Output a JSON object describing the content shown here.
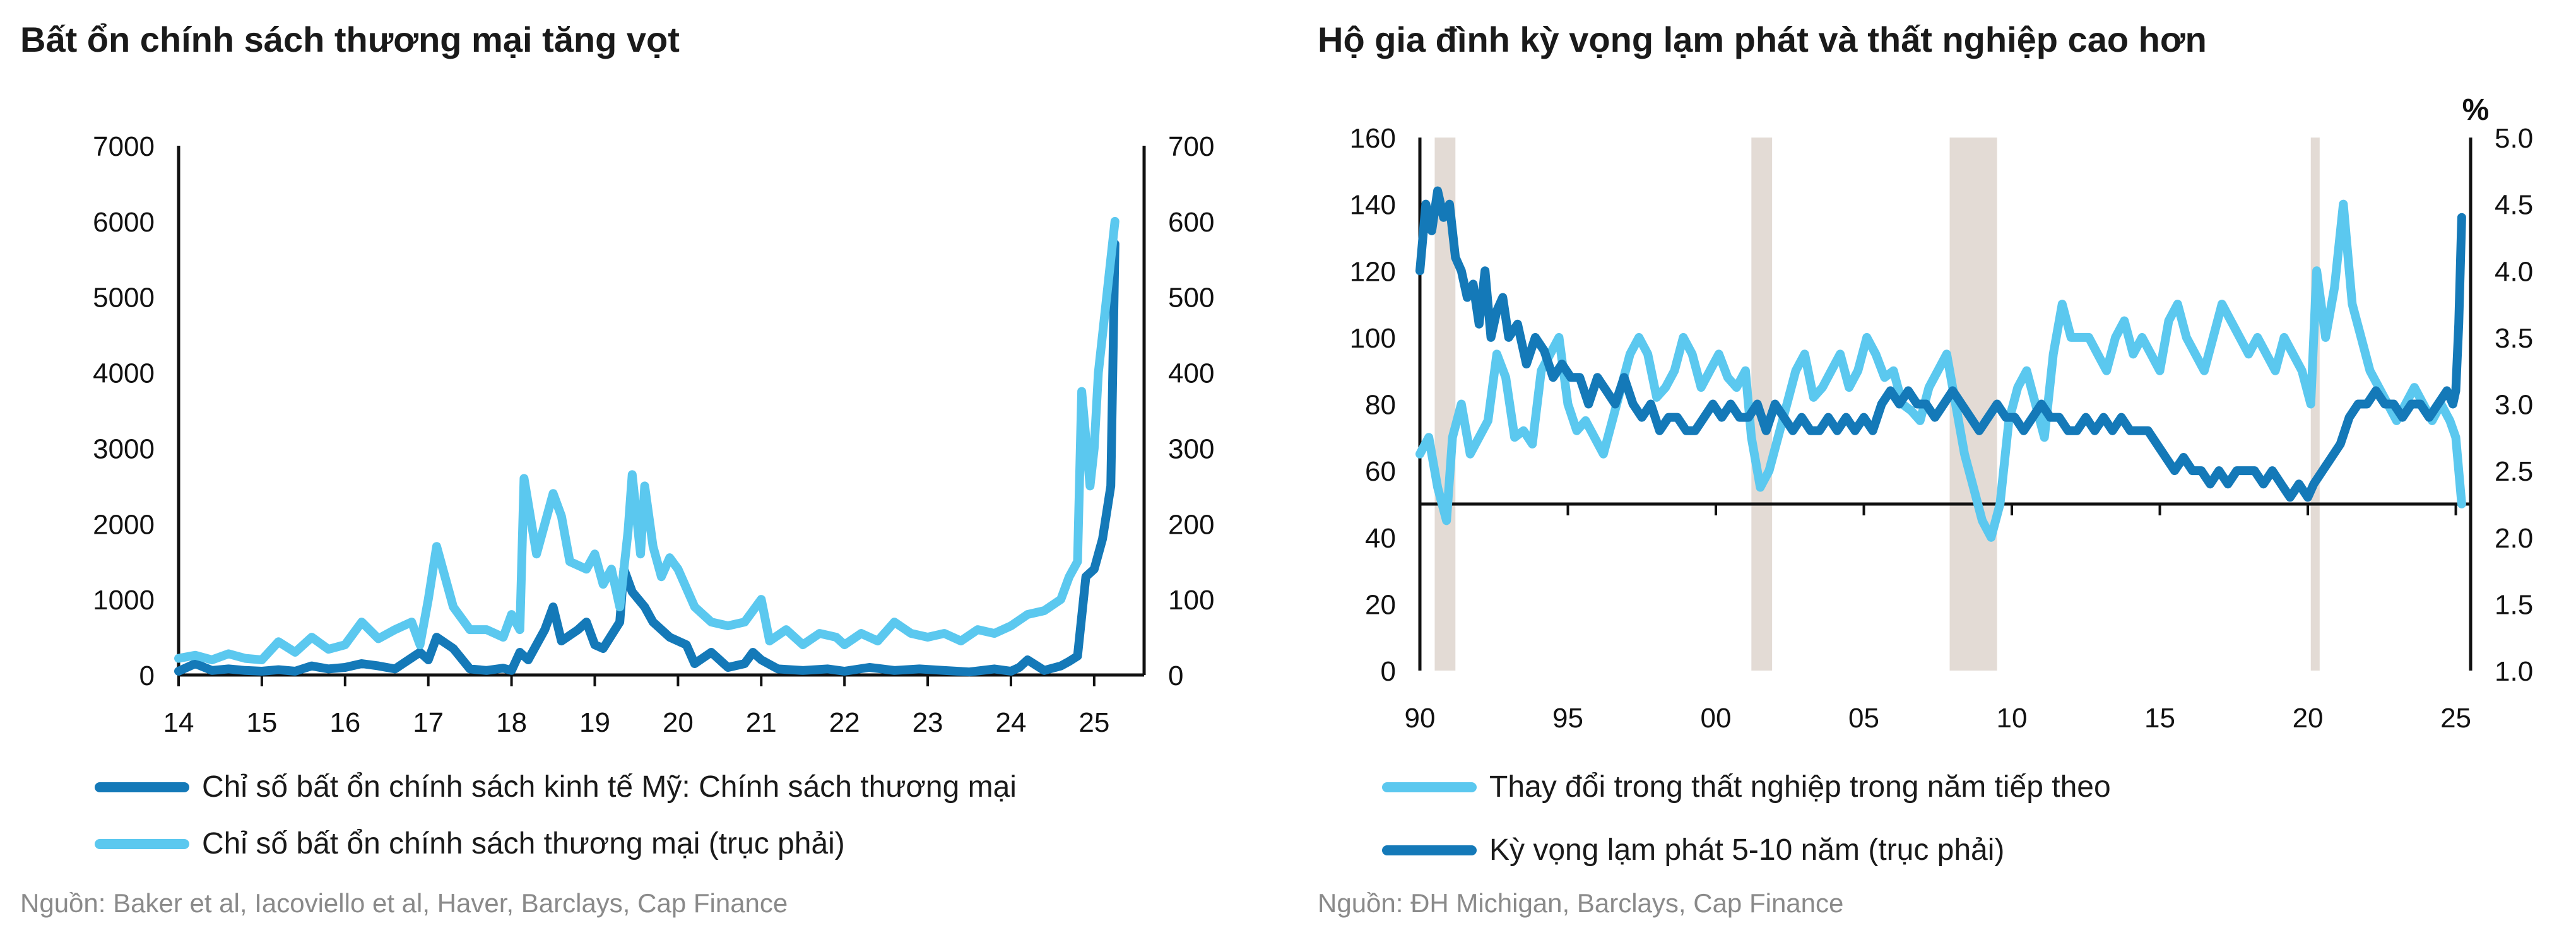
{
  "chart_data": [
    {
      "type": "line",
      "title": "Bất ổn chính sách thương mại tăng vọt",
      "xlabel": "",
      "ylabel": "",
      "x_ticks": [
        "14",
        "15",
        "16",
        "17",
        "18",
        "19",
        "20",
        "21",
        "22",
        "23",
        "24",
        "25"
      ],
      "xlim": [
        2014.0,
        2025.6
      ],
      "ylim_left": [
        0,
        7000
      ],
      "ylim_right": [
        0,
        700
      ],
      "yticks_left": [
        "7000",
        "6000",
        "5000",
        "4000",
        "3000",
        "2000",
        "1000",
        "0"
      ],
      "yticks_right": [
        "700",
        "600",
        "500",
        "400",
        "300",
        "200",
        "100",
        "0"
      ],
      "grid": false,
      "legend_position": "bottom",
      "series": [
        {
          "name": "Chỉ số bất ổn chính sách kinh tế Mỹ: Chính sách thương mại",
          "axis": "left",
          "color": "#1479b8",
          "x": [
            2014.0,
            2014.2,
            2014.4,
            2014.6,
            2014.8,
            2015.0,
            2015.2,
            2015.4,
            2015.6,
            2015.8,
            2016.0,
            2016.2,
            2016.4,
            2016.6,
            2016.9,
            2017.0,
            2017.1,
            2017.3,
            2017.5,
            2017.7,
            2017.9,
            2018.0,
            2018.1,
            2018.2,
            2018.4,
            2018.5,
            2018.6,
            2018.8,
            2018.9,
            2019.0,
            2019.1,
            2019.3,
            2019.35,
            2019.45,
            2019.6,
            2019.7,
            2019.9,
            2020.1,
            2020.2,
            2020.4,
            2020.6,
            2020.8,
            2020.9,
            2021.0,
            2021.2,
            2021.5,
            2021.8,
            2022.0,
            2022.3,
            2022.6,
            2022.9,
            2023.2,
            2023.5,
            2023.8,
            2024.0,
            2024.1,
            2024.2,
            2024.4,
            2024.6,
            2024.7,
            2024.8,
            2024.9,
            2025.0,
            2025.1,
            2025.2,
            2025.25
          ],
          "values": [
            50,
            150,
            60,
            80,
            60,
            50,
            70,
            50,
            120,
            80,
            100,
            150,
            120,
            80,
            300,
            200,
            500,
            350,
            80,
            60,
            90,
            60,
            300,
            200,
            600,
            900,
            450,
            600,
            700,
            400,
            350,
            700,
            1400,
            1100,
            900,
            700,
            500,
            400,
            150,
            300,
            100,
            150,
            300,
            200,
            80,
            60,
            80,
            50,
            100,
            60,
            80,
            60,
            40,
            80,
            50,
            100,
            200,
            60,
            120,
            180,
            250,
            1300,
            1400,
            1800,
            2500,
            5700
          ]
        },
        {
          "name": "Chỉ số bất ổn chính sách thương mại (trục phải)",
          "axis": "right",
          "color": "#5bc8ef",
          "x": [
            2014.0,
            2014.2,
            2014.4,
            2014.6,
            2014.8,
            2015.0,
            2015.2,
            2015.4,
            2015.6,
            2015.8,
            2016.0,
            2016.2,
            2016.4,
            2016.6,
            2016.8,
            2016.9,
            2017.0,
            2017.1,
            2017.3,
            2017.5,
            2017.7,
            2017.9,
            2018.0,
            2018.1,
            2018.15,
            2018.3,
            2018.5,
            2018.6,
            2018.7,
            2018.9,
            2019.0,
            2019.1,
            2019.2,
            2019.3,
            2019.4,
            2019.45,
            2019.55,
            2019.6,
            2019.7,
            2019.8,
            2019.9,
            2020.0,
            2020.2,
            2020.4,
            2020.6,
            2020.8,
            2020.9,
            2021.0,
            2021.1,
            2021.3,
            2021.5,
            2021.7,
            2021.9,
            2022.0,
            2022.2,
            2022.4,
            2022.6,
            2022.8,
            2023.0,
            2023.2,
            2023.4,
            2023.6,
            2023.8,
            2024.0,
            2024.2,
            2024.4,
            2024.6,
            2024.7,
            2024.8,
            2024.85,
            2024.95,
            2025.0,
            2025.05,
            2025.1,
            2025.2,
            2025.25
          ],
          "values": [
            22,
            26,
            20,
            28,
            22,
            20,
            44,
            30,
            50,
            34,
            40,
            70,
            48,
            60,
            70,
            40,
            100,
            170,
            90,
            60,
            60,
            50,
            80,
            60,
            260,
            160,
            240,
            210,
            150,
            140,
            160,
            120,
            140,
            90,
            190,
            265,
            160,
            250,
            170,
            130,
            155,
            140,
            90,
            70,
            65,
            70,
            85,
            100,
            45,
            60,
            40,
            55,
            50,
            40,
            55,
            45,
            70,
            55,
            50,
            55,
            45,
            60,
            55,
            65,
            80,
            85,
            100,
            130,
            150,
            375,
            250,
            300,
            400,
            450,
            550,
            600
          ]
        }
      ]
    },
    {
      "type": "line",
      "title": "Hộ gia đình kỳ vọng lạm phát và thất nghiệp cao hơn",
      "xlabel": "",
      "ylabel": "",
      "right_axis_label": "%",
      "x_ticks": [
        "90",
        "95",
        "00",
        "05",
        "10",
        "15",
        "20",
        "25"
      ],
      "xlim": [
        1990.0,
        2025.5
      ],
      "ylim_left": [
        0,
        160
      ],
      "ylim_right": [
        1.0,
        5.0
      ],
      "yticks_left": [
        "160",
        "140",
        "120",
        "100",
        "80",
        "60",
        "40",
        "20",
        "0"
      ],
      "yticks_right": [
        "5.0",
        "4.5",
        "4.0",
        "3.5",
        "3.0",
        "2.5",
        "2.0",
        "1.5",
        "1.0"
      ],
      "grid": false,
      "legend_position": "bottom",
      "recession_bands": [
        [
          1990.5,
          1991.2
        ],
        [
          2001.2,
          2001.9
        ],
        [
          2007.9,
          2009.5
        ],
        [
          2020.1,
          2020.4
        ]
      ],
      "series": [
        {
          "name": "Thay đổi trong thất nghiệp trong năm tiếp theo",
          "axis": "left",
          "color": "#5bc8ef",
          "x": [
            1990.0,
            1990.3,
            1990.6,
            1990.9,
            1991.1,
            1991.4,
            1991.7,
            1992.0,
            1992.3,
            1992.6,
            1992.9,
            1993.2,
            1993.5,
            1993.8,
            1994.1,
            1994.4,
            1994.7,
            1995.0,
            1995.3,
            1995.6,
            1995.9,
            1996.2,
            1996.5,
            1996.8,
            1997.1,
            1997.4,
            1997.7,
            1998.0,
            1998.3,
            1998.6,
            1998.9,
            1999.2,
            1999.5,
            1999.8,
            2000.1,
            2000.4,
            2000.7,
            2001.0,
            2001.2,
            2001.5,
            2001.8,
            2002.1,
            2002.4,
            2002.7,
            2003.0,
            2003.3,
            2003.6,
            2003.9,
            2004.2,
            2004.5,
            2004.8,
            2005.1,
            2005.4,
            2005.7,
            2006.0,
            2006.3,
            2006.6,
            2006.9,
            2007.2,
            2007.5,
            2007.8,
            2008.1,
            2008.4,
            2008.7,
            2009.0,
            2009.3,
            2009.6,
            2009.9,
            2010.2,
            2010.5,
            2010.8,
            2011.1,
            2011.4,
            2011.7,
            2012.0,
            2012.3,
            2012.6,
            2012.9,
            2013.2,
            2013.5,
            2013.8,
            2014.1,
            2014.4,
            2014.7,
            2015.0,
            2015.3,
            2015.6,
            2015.9,
            2016.2,
            2016.5,
            2016.8,
            2017.1,
            2017.4,
            2017.7,
            2018.0,
            2018.3,
            2018.6,
            2018.9,
            2019.2,
            2019.5,
            2019.8,
            2020.1,
            2020.3,
            2020.6,
            2020.9,
            2021.2,
            2021.5,
            2021.8,
            2022.1,
            2022.4,
            2022.7,
            2023.0,
            2023.3,
            2023.6,
            2023.9,
            2024.2,
            2024.5,
            2024.8,
            2025.0,
            2025.2
          ],
          "values": [
            65,
            70,
            55,
            45,
            70,
            80,
            65,
            70,
            75,
            95,
            88,
            70,
            72,
            68,
            90,
            95,
            100,
            80,
            72,
            75,
            70,
            65,
            75,
            85,
            95,
            100,
            95,
            82,
            85,
            90,
            100,
            95,
            85,
            90,
            95,
            88,
            85,
            90,
            70,
            55,
            60,
            70,
            80,
            90,
            95,
            82,
            85,
            90,
            95,
            85,
            90,
            100,
            95,
            88,
            90,
            80,
            78,
            75,
            85,
            90,
            95,
            80,
            65,
            55,
            45,
            40,
            50,
            75,
            85,
            90,
            80,
            70,
            95,
            110,
            100,
            100,
            100,
            95,
            90,
            100,
            105,
            95,
            100,
            95,
            90,
            105,
            110,
            100,
            95,
            90,
            100,
            110,
            105,
            100,
            95,
            100,
            95,
            90,
            100,
            95,
            90,
            80,
            120,
            100,
            115,
            140,
            110,
            100,
            90,
            85,
            80,
            75,
            80,
            85,
            80,
            75,
            80,
            75,
            70,
            50
          ]
        },
        {
          "name": "Kỳ vọng lạm phát 5-10 năm (trục phải)",
          "axis": "right",
          "color": "#1479b8",
          "x": [
            1990.0,
            1990.2,
            1990.4,
            1990.6,
            1990.8,
            1991.0,
            1991.2,
            1991.4,
            1991.6,
            1991.8,
            1992.0,
            1992.2,
            1992.4,
            1992.6,
            1992.8,
            1993.0,
            1993.3,
            1993.6,
            1993.9,
            1994.2,
            1994.5,
            1994.8,
            1995.1,
            1995.4,
            1995.7,
            1996.0,
            1996.3,
            1996.6,
            1996.9,
            1997.2,
            1997.5,
            1997.8,
            1998.1,
            1998.4,
            1998.7,
            1999.0,
            1999.3,
            1999.6,
            1999.9,
            2000.2,
            2000.5,
            2000.8,
            2001.1,
            2001.4,
            2001.7,
            2002.0,
            2002.3,
            2002.6,
            2002.9,
            2003.2,
            2003.5,
            2003.8,
            2004.1,
            2004.4,
            2004.7,
            2005.0,
            2005.3,
            2005.6,
            2005.9,
            2006.2,
            2006.5,
            2006.8,
            2007.1,
            2007.4,
            2007.7,
            2008.0,
            2008.3,
            2008.6,
            2008.9,
            2009.2,
            2009.5,
            2009.8,
            2010.1,
            2010.4,
            2010.7,
            2011.0,
            2011.3,
            2011.6,
            2011.9,
            2012.2,
            2012.5,
            2012.8,
            2013.1,
            2013.4,
            2013.7,
            2014.0,
            2014.3,
            2014.6,
            2014.9,
            2015.2,
            2015.5,
            2015.8,
            2016.1,
            2016.4,
            2016.7,
            2017.0,
            2017.3,
            2017.6,
            2017.9,
            2018.2,
            2018.5,
            2018.8,
            2019.1,
            2019.4,
            2019.7,
            2020.0,
            2020.2,
            2020.5,
            2020.8,
            2021.1,
            2021.4,
            2021.7,
            2022.0,
            2022.3,
            2022.6,
            2022.9,
            2023.2,
            2023.5,
            2023.8,
            2024.1,
            2024.4,
            2024.7,
            2024.9,
            2025.0,
            2025.1,
            2025.2
          ],
          "values": [
            4.0,
            4.5,
            4.3,
            4.6,
            4.4,
            4.5,
            4.1,
            4.0,
            3.8,
            3.9,
            3.6,
            4.0,
            3.5,
            3.7,
            3.8,
            3.5,
            3.6,
            3.3,
            3.5,
            3.4,
            3.2,
            3.3,
            3.2,
            3.2,
            3.0,
            3.2,
            3.1,
            3.0,
            3.2,
            3.0,
            2.9,
            3.0,
            2.8,
            2.9,
            2.9,
            2.8,
            2.8,
            2.9,
            3.0,
            2.9,
            3.0,
            2.9,
            2.9,
            3.0,
            2.8,
            3.0,
            2.9,
            2.8,
            2.9,
            2.8,
            2.8,
            2.9,
            2.8,
            2.9,
            2.8,
            2.9,
            2.8,
            3.0,
            3.1,
            3.0,
            3.1,
            3.0,
            3.0,
            2.9,
            3.0,
            3.1,
            3.0,
            2.9,
            2.8,
            2.9,
            3.0,
            2.9,
            2.9,
            2.8,
            2.9,
            3.0,
            2.9,
            2.9,
            2.8,
            2.8,
            2.9,
            2.8,
            2.9,
            2.8,
            2.9,
            2.8,
            2.8,
            2.8,
            2.7,
            2.6,
            2.5,
            2.6,
            2.5,
            2.5,
            2.4,
            2.5,
            2.4,
            2.5,
            2.5,
            2.5,
            2.4,
            2.5,
            2.4,
            2.3,
            2.4,
            2.3,
            2.4,
            2.5,
            2.6,
            2.7,
            2.9,
            3.0,
            3.0,
            3.1,
            3.0,
            3.0,
            2.9,
            3.0,
            3.0,
            2.9,
            3.0,
            3.1,
            3.0,
            3.1,
            3.6,
            4.4
          ]
        }
      ]
    }
  ],
  "sources": [
    "Nguồn: Baker et al, Iacoviello et al, Haver, Barclays, Cap Finance",
    "Nguồn: ĐH Michigan, Barclays, Cap Finance"
  ]
}
